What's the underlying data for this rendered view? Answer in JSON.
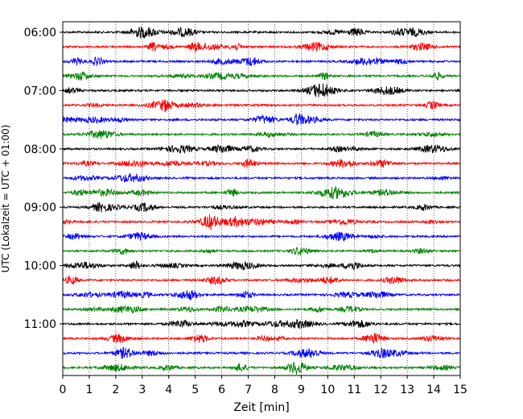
{
  "chart_data": {
    "type": "line",
    "title": "",
    "xlabel": "Zeit  [min]",
    "ylabel": "UTC (Lokalzeit = UTC + 01:00)",
    "xlim": [
      0,
      15
    ],
    "x_ticks": [
      0,
      1,
      2,
      3,
      4,
      5,
      6,
      7,
      8,
      9,
      10,
      11,
      12,
      13,
      14,
      15
    ],
    "x_tick_labels": [
      "0",
      "1",
      "2",
      "3",
      "4",
      "5",
      "6",
      "7",
      "8",
      "9",
      "10",
      "11",
      "12",
      "13",
      "14",
      "15"
    ],
    "y_tick_labels": [
      "06:00",
      "07:00",
      "08:00",
      "09:00",
      "10:00",
      "11:00"
    ],
    "grid": "vertical dotted",
    "trace_colors": [
      "#000000",
      "#ff0000",
      "#0000ff",
      "#008000"
    ],
    "traces": [
      {
        "start": "06:00",
        "color": "#000000"
      },
      {
        "start": "06:15",
        "color": "#ff0000"
      },
      {
        "start": "06:30",
        "color": "#0000ff"
      },
      {
        "start": "06:45",
        "color": "#008000"
      },
      {
        "start": "07:00",
        "color": "#000000"
      },
      {
        "start": "07:15",
        "color": "#ff0000"
      },
      {
        "start": "07:30",
        "color": "#0000ff"
      },
      {
        "start": "07:45",
        "color": "#008000"
      },
      {
        "start": "08:00",
        "color": "#000000"
      },
      {
        "start": "08:15",
        "color": "#ff0000"
      },
      {
        "start": "08:30",
        "color": "#0000ff"
      },
      {
        "start": "08:45",
        "color": "#008000"
      },
      {
        "start": "09:00",
        "color": "#000000"
      },
      {
        "start": "09:15",
        "color": "#ff0000"
      },
      {
        "start": "09:30",
        "color": "#0000ff"
      },
      {
        "start": "09:45",
        "color": "#008000"
      },
      {
        "start": "10:00",
        "color": "#000000"
      },
      {
        "start": "10:15",
        "color": "#ff0000"
      },
      {
        "start": "10:30",
        "color": "#0000ff"
      },
      {
        "start": "10:45",
        "color": "#008000"
      },
      {
        "start": "11:00",
        "color": "#000000"
      },
      {
        "start": "11:15",
        "color": "#ff0000"
      },
      {
        "start": "11:30",
        "color": "#0000ff"
      },
      {
        "start": "11:45",
        "color": "#008000"
      }
    ]
  }
}
